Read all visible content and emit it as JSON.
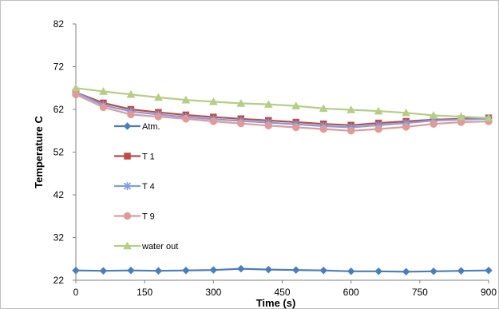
{
  "chart_data": {
    "type": "line",
    "title": "",
    "xlabel": "Time (s)",
    "ylabel": "Temperature C",
    "xlim": [
      0,
      900
    ],
    "ylim": [
      22,
      82
    ],
    "x_ticks": [
      0,
      150,
      300,
      450,
      600,
      750,
      900
    ],
    "y_ticks": [
      22,
      32,
      42,
      52,
      62,
      72,
      82
    ],
    "grid": false,
    "legend_position": "inside-left",
    "x": [
      0,
      60,
      120,
      180,
      240,
      300,
      360,
      420,
      480,
      540,
      600,
      660,
      720,
      780,
      840,
      900
    ],
    "series": [
      {
        "name": "Atm.",
        "color": "#4a7ebb",
        "marker": "diamond",
        "values": [
          24.3,
          24.2,
          24.3,
          24.2,
          24.3,
          24.4,
          24.7,
          24.5,
          24.4,
          24.3,
          24.1,
          24.1,
          24.0,
          24.1,
          24.2,
          24.3
        ]
      },
      {
        "name": "T 1",
        "color": "#be4b48",
        "marker": "square",
        "values": [
          66.0,
          63.5,
          62.0,
          61.3,
          60.7,
          60.2,
          59.8,
          59.4,
          59.0,
          58.6,
          58.3,
          58.8,
          59.2,
          59.6,
          59.8,
          60.0
        ]
      },
      {
        "name": "T 4",
        "color": "#7f9ee0",
        "marker": "star",
        "values": [
          66.0,
          63.0,
          61.5,
          60.8,
          60.2,
          59.7,
          59.3,
          58.9,
          58.5,
          58.1,
          57.8,
          58.3,
          58.8,
          59.4,
          59.6,
          59.8
        ]
      },
      {
        "name": "T 9",
        "color": "#e09a9a",
        "marker": "circle",
        "values": [
          65.5,
          62.5,
          60.8,
          60.3,
          59.8,
          59.2,
          58.7,
          58.2,
          57.8,
          57.4,
          57.0,
          57.4,
          57.9,
          58.6,
          59.0,
          59.2
        ]
      },
      {
        "name": "water out",
        "color": "#b5cd85",
        "marker": "triangle",
        "values": [
          67.0,
          66.2,
          65.5,
          64.8,
          64.2,
          63.8,
          63.4,
          63.2,
          62.8,
          62.2,
          61.9,
          61.6,
          61.2,
          60.6,
          60.3,
          60.0
        ]
      }
    ]
  }
}
